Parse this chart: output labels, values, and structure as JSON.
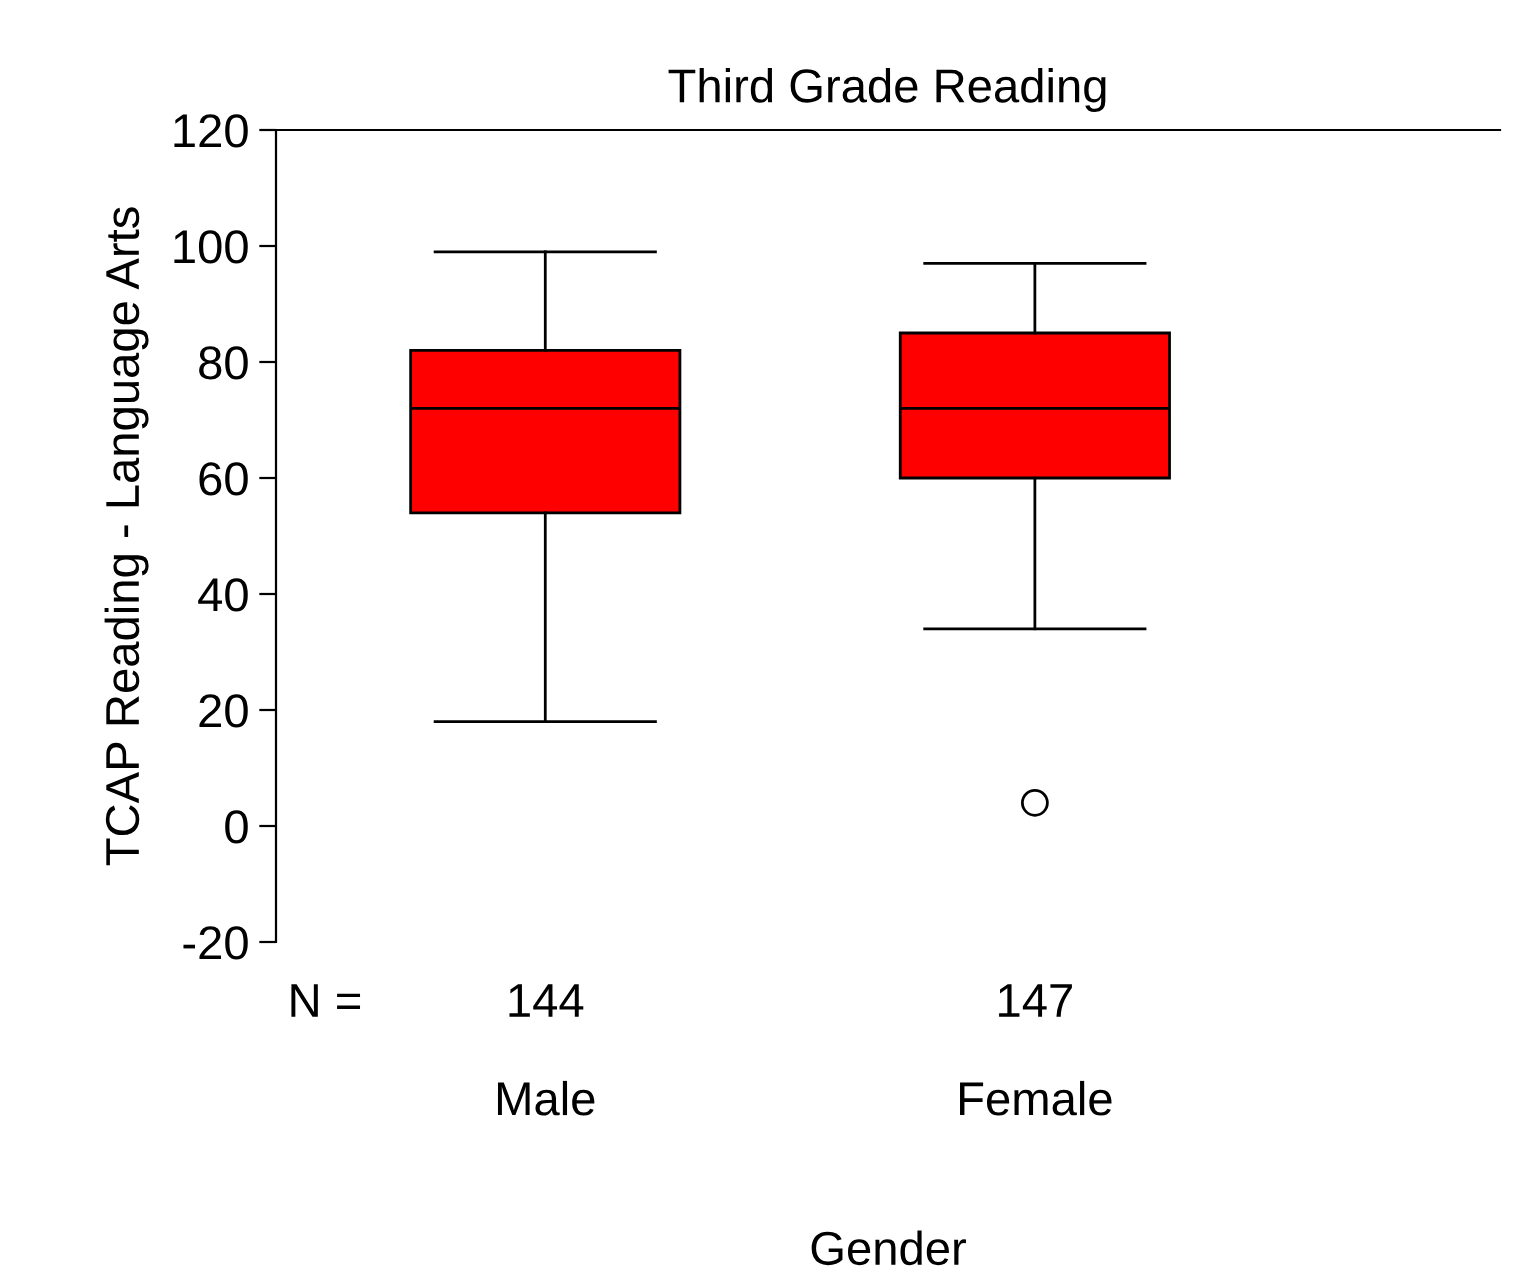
{
  "chart_data": {
    "type": "box",
    "title": "Third Grade Reading",
    "xlabel": "Gender",
    "ylabel": "TCAP Reading - Language Arts",
    "categories": [
      "Male",
      "Female"
    ],
    "boxes": [
      {
        "low": 18,
        "q1": 54,
        "median": 72,
        "q3": 82,
        "high": 99
      },
      {
        "low": 34,
        "q1": 60,
        "median": 72,
        "q3": 85,
        "high": 97,
        "outliers": [
          4
        ]
      }
    ],
    "color": "#ff0000",
    "ylim": [
      -20,
      120
    ],
    "yticks": [
      -20,
      0,
      20,
      40,
      60,
      80,
      100,
      120
    ],
    "annotations": [
      "N =",
      "144",
      "147"
    ],
    "grid": false
  }
}
